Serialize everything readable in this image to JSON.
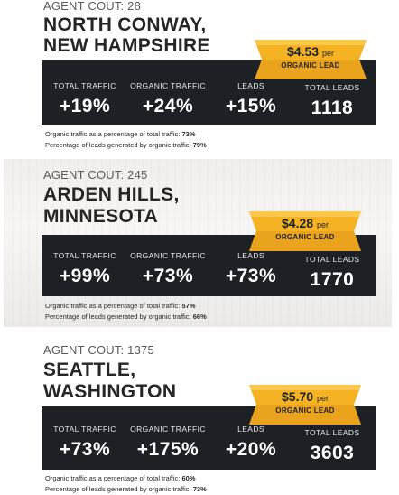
{
  "locations": [
    {
      "agent_count": "AGENT COUT: 28",
      "city_line1": "NORTH CONWAY,",
      "city_line2": "NEW HAMPSHIRE",
      "price": "$4.53",
      "per": "per",
      "lead_label": "ORGANIC LEAD",
      "stats": [
        {
          "label": "TOTAL TRAFFIC",
          "value": "+19%"
        },
        {
          "label": "ORGANIC TRAFFIC",
          "value": "+24%"
        },
        {
          "label": "LEADS",
          "value": "+15%"
        },
        {
          "label": "TOTAL LEADS",
          "value": "1118"
        }
      ],
      "note1_text": "Organic traffic as a percentage of total traffic:",
      "note1_value": "73%",
      "note2_text": "Percentage of leads generated by organic traffic:",
      "note2_value": "79%"
    },
    {
      "agent_count": "AGENT COUT: 245",
      "city_line1": "ARDEN HILLS,",
      "city_line2": "MINNESOTA",
      "price": "$4.28",
      "per": "per",
      "lead_label": "ORGANIC LEAD",
      "stats": [
        {
          "label": "TOTAL TRAFFIC",
          "value": "+99%"
        },
        {
          "label": "ORGANIC TRAFFIC",
          "value": "+73%"
        },
        {
          "label": "LEADS",
          "value": "+73%"
        },
        {
          "label": "TOTAL LEADS",
          "value": "1770"
        }
      ],
      "note1_text": "Organic traffic as a percentage of total traffic:",
      "note1_value": "57%",
      "note2_text": "Percentage of leads generated by organic traffic:",
      "note2_value": "66%"
    },
    {
      "agent_count": "AGENT COUT: 1375",
      "city_line1": "SEATTLE,",
      "city_line2": "WASHINGTON",
      "price": "$5.70",
      "per": "per",
      "lead_label": "ORGANIC LEAD",
      "stats": [
        {
          "label": "TOTAL TRAFFIC",
          "value": "+73%"
        },
        {
          "label": "ORGANIC TRAFFIC",
          "value": "+175%"
        },
        {
          "label": "LEADS",
          "value": "+20%"
        },
        {
          "label": "TOTAL LEADS",
          "value": "3603"
        }
      ],
      "note1_text": "Organic traffic as a percentage of total traffic:",
      "note1_value": "60%",
      "note2_text": "Percentage of leads generated by organic traffic:",
      "note2_value": "73%"
    }
  ],
  "colors": {
    "panel": "#1d2024",
    "tag_gold": "#f5b324",
    "tag_gold_dark": "#c98a12",
    "heading": "#262626"
  }
}
